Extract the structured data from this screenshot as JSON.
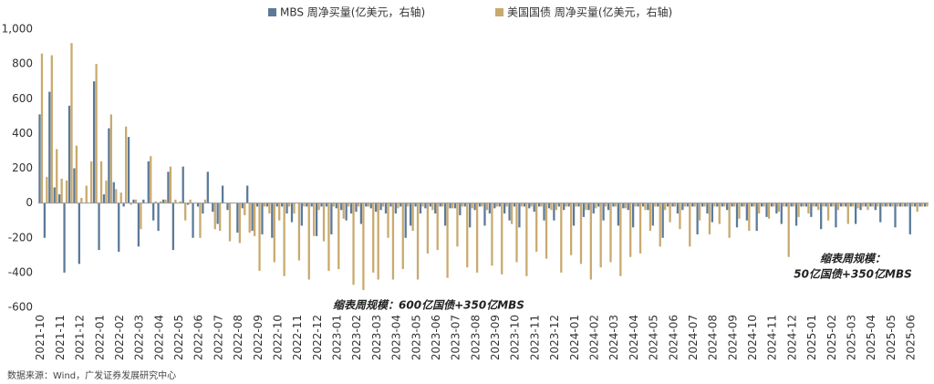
{
  "chart_data": {
    "type": "bar",
    "legend": "top",
    "annotations": [
      "缩表周规模：600亿国债+350亿MBS",
      "缩表周规模：",
      "50亿国债+350亿MBS"
    ],
    "source": "数据来源：Wind，广发证券发展研究中心",
    "ylim": [
      -600,
      1000
    ],
    "yticks": [
      {
        "value": 1000,
        "label": "1,000"
      },
      800,
      600,
      400,
      200,
      0,
      -200,
      -400,
      -600
    ],
    "categories": [
      "2021-10",
      null,
      null,
      null,
      "2021-11",
      null,
      null,
      null,
      "2021-12",
      null,
      null,
      null,
      "2022-01",
      null,
      null,
      null,
      "2022-02",
      null,
      null,
      null,
      "2022-03",
      null,
      null,
      null,
      "2022-04",
      null,
      null,
      null,
      "2022-05",
      null,
      null,
      null,
      "2022-06",
      null,
      null,
      null,
      "2022-07",
      null,
      null,
      null,
      "2022-08",
      null,
      null,
      null,
      "2022-09",
      null,
      null,
      null,
      "2022-10",
      null,
      null,
      null,
      "2022-11",
      null,
      null,
      null,
      "2022-12",
      null,
      null,
      null,
      "2023-01",
      null,
      null,
      null,
      "2023-02",
      null,
      null,
      null,
      "2023-03",
      null,
      null,
      null,
      "2023-04",
      null,
      null,
      null,
      "2023-05",
      null,
      null,
      null,
      "2023-06",
      null,
      null,
      null,
      "2023-07",
      null,
      null,
      null,
      "2023-08",
      null,
      null,
      null,
      "2023-09",
      null,
      null,
      null,
      "2023-10",
      null,
      null,
      null,
      "2023-11",
      null,
      null,
      null,
      "2023-12",
      null,
      null,
      null,
      "2024-01",
      null,
      null,
      null,
      "2024-02",
      null,
      null,
      null,
      "2024-03",
      null,
      null,
      null,
      "2024-04",
      null,
      null,
      null,
      "2024-05",
      null,
      null,
      null,
      "2024-06",
      null,
      null,
      null,
      "2024-07",
      null,
      null,
      null,
      "2024-08",
      null,
      null,
      null,
      "2024-09",
      null,
      null,
      null,
      "2024-10",
      null,
      null,
      null,
      "2024-11",
      null,
      null,
      null,
      "2024-12",
      null,
      null,
      null,
      "2025-01",
      null,
      null,
      null,
      "2025-02",
      null,
      null,
      null,
      "2025-03",
      null,
      null,
      null,
      "2025-04",
      null,
      null,
      null,
      "2025-05",
      null,
      null,
      null,
      "2025-06",
      null,
      null,
      null
    ],
    "series": [
      {
        "name": "MBS 周净买量(亿美元，右轴)",
        "color": "#5b7a99",
        "values": [
          510,
          -200,
          640,
          90,
          50,
          -400,
          560,
          200,
          -350,
          0,
          0,
          700,
          -270,
          50,
          430,
          120,
          -280,
          -20,
          380,
          20,
          -250,
          20,
          240,
          -100,
          -160,
          20,
          180,
          -270,
          0,
          210,
          -10,
          -200,
          -20,
          -60,
          180,
          -50,
          -120,
          100,
          -40,
          0,
          -170,
          -30,
          100,
          -160,
          -20,
          -180,
          -20,
          -200,
          -20,
          -20,
          -60,
          -110,
          0,
          -130,
          -20,
          -20,
          -190,
          -20,
          -20,
          -180,
          -30,
          -40,
          -100,
          -60,
          -50,
          -120,
          -20,
          -30,
          -50,
          -40,
          -60,
          -20,
          -60,
          -20,
          -200,
          -130,
          -20,
          -60,
          -30,
          -20,
          -60,
          -20,
          -130,
          -30,
          -30,
          -70,
          -20,
          -140,
          -40,
          -20,
          -130,
          -60,
          -30,
          -20,
          -60,
          -100,
          -20,
          -140,
          -20,
          -30,
          -50,
          -20,
          -100,
          -30,
          -100,
          -20,
          -40,
          -20,
          -130,
          -20,
          -80,
          -40,
          -60,
          -20,
          -100,
          -40,
          -20,
          -130,
          -30,
          -40,
          -140,
          -20,
          -20,
          -40,
          -130,
          -20,
          -200,
          -20,
          -20,
          -60,
          -40,
          -20,
          -20,
          -180,
          -20,
          -60,
          -110,
          -20,
          -20,
          -40,
          -20,
          -140,
          -20,
          -100,
          -20,
          -160,
          -20,
          -80,
          -20,
          -60,
          -120,
          -20,
          -20,
          -130,
          -20,
          -20,
          -80,
          -20,
          -150,
          -20,
          -20,
          -140,
          -20,
          -20,
          -20,
          -120,
          -40,
          -20,
          -20,
          -40,
          -110,
          -20,
          -20,
          -140,
          -20,
          -20,
          -180,
          -20,
          -20,
          -20
        ]
      },
      {
        "name": "美国国债 周净买量(亿美元，右轴)",
        "color": "#c9a96e",
        "values": [
          860,
          150,
          850,
          310,
          140,
          130,
          920,
          330,
          30,
          100,
          240,
          800,
          240,
          130,
          510,
          80,
          60,
          440,
          -10,
          20,
          -150,
          0,
          270,
          10,
          10,
          20,
          210,
          20,
          10,
          -100,
          20,
          0,
          -200,
          20,
          0,
          -150,
          -160,
          0,
          -220,
          0,
          -230,
          -70,
          -170,
          -190,
          -390,
          -20,
          -60,
          -340,
          -100,
          -420,
          -20,
          -60,
          -330,
          -20,
          -440,
          -190,
          -40,
          -220,
          -390,
          -20,
          -380,
          -90,
          -20,
          -470,
          -20,
          -500,
          -20,
          -400,
          -440,
          -20,
          -200,
          -440,
          -30,
          -380,
          -20,
          -160,
          -440,
          -20,
          -290,
          -40,
          -270,
          -20,
          -430,
          -30,
          -250,
          -20,
          -370,
          -30,
          -400,
          -20,
          -40,
          -360,
          -20,
          -410,
          -20,
          -120,
          -340,
          -20,
          -420,
          -20,
          -280,
          -20,
          -320,
          -40,
          -40,
          -400,
          -20,
          -300,
          -20,
          -350,
          -40,
          -440,
          -30,
          -370,
          -20,
          -340,
          -20,
          -420,
          -30,
          -310,
          -20,
          -290,
          -40,
          -160,
          -20,
          -250,
          -40,
          -110,
          -20,
          -150,
          -20,
          -250,
          -20,
          -100,
          -20,
          -180,
          -20,
          -120,
          -20,
          -200,
          -20,
          -90,
          -20,
          -160,
          -20,
          -60,
          -20,
          -90,
          -20,
          -50,
          -20,
          -310,
          -20,
          -80,
          -20,
          -60,
          -20,
          -40,
          -20,
          -100,
          -20,
          -40,
          -20,
          -120,
          -20,
          -30,
          -20,
          -40,
          -20,
          -20,
          -20,
          -20,
          -20,
          -20,
          -20,
          -20,
          -20,
          -50,
          -20,
          -20
        ]
      }
    ]
  }
}
